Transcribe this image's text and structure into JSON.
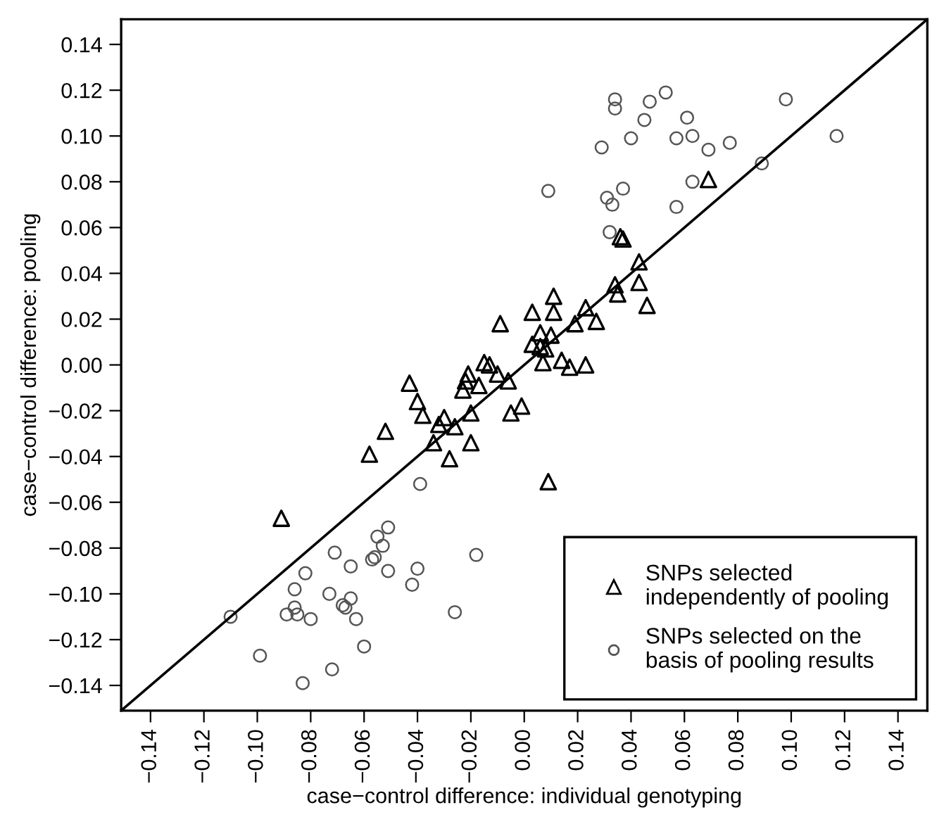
{
  "chart_data": {
    "type": "scatter",
    "xlabel": "case−control difference: individual genotyping",
    "ylabel": "case−control difference: pooling",
    "xlim": [
      -0.151,
      0.151
    ],
    "ylim": [
      -0.151,
      0.151
    ],
    "xticks": [
      {
        "value": -0.14,
        "label": "−0.14"
      },
      {
        "value": -0.12,
        "label": "−0.12"
      },
      {
        "value": -0.1,
        "label": "−0.10"
      },
      {
        "value": -0.08,
        "label": "−0.08"
      },
      {
        "value": -0.06,
        "label": "−0.06"
      },
      {
        "value": -0.04,
        "label": "−0.04"
      },
      {
        "value": -0.02,
        "label": "−0.02"
      },
      {
        "value": 0,
        "label": "0.00"
      },
      {
        "value": 0.02,
        "label": "0.02"
      },
      {
        "value": 0.04,
        "label": "0.04"
      },
      {
        "value": 0.06,
        "label": "0.06"
      },
      {
        "value": 0.08,
        "label": "0.08"
      },
      {
        "value": 0.1,
        "label": "0.10"
      },
      {
        "value": 0.12,
        "label": "0.12"
      },
      {
        "value": 0.14,
        "label": "0.14"
      }
    ],
    "yticks": [
      {
        "value": -0.14,
        "label": "−0.14"
      },
      {
        "value": -0.12,
        "label": "−0.12"
      },
      {
        "value": -0.1,
        "label": "−0.10"
      },
      {
        "value": -0.08,
        "label": "−0.08"
      },
      {
        "value": -0.06,
        "label": "−0.06"
      },
      {
        "value": -0.04,
        "label": "−0.04"
      },
      {
        "value": -0.02,
        "label": "−0.02"
      },
      {
        "value": 0,
        "label": "0.00"
      },
      {
        "value": 0.02,
        "label": "0.02"
      },
      {
        "value": 0.04,
        "label": "0.04"
      },
      {
        "value": 0.06,
        "label": "0.06"
      },
      {
        "value": 0.08,
        "label": "0.08"
      },
      {
        "value": 0.1,
        "label": "0.10"
      },
      {
        "value": 0.12,
        "label": "0.12"
      },
      {
        "value": 0.14,
        "label": "0.14"
      }
    ],
    "grid": false,
    "legend": "bottom right",
    "series": [
      {
        "type": "line",
        "color": "#000000",
        "line_style": "solid",
        "marker": "none",
        "x": [
          -0.151,
          0.151
        ],
        "values": [
          -0.151,
          0.151
        ]
      },
      {
        "name": "SNPs selected\nindependently of pooling",
        "color": "#000000",
        "marker": "triangle",
        "x": [
          0.069,
          0.036,
          0.037,
          0.043,
          0.034,
          0.043,
          0.035,
          0.046,
          0.011,
          0.003,
          0.011,
          0.023,
          0.027,
          0.019,
          -0.009,
          0.006,
          0.01,
          0.003,
          0.006,
          0.008,
          0.007,
          0.014,
          0.017,
          0.023,
          -0.015,
          -0.013,
          -0.01,
          -0.021,
          -0.022,
          -0.017,
          -0.023,
          -0.006,
          -0.005,
          -0.001,
          -0.02,
          -0.03,
          -0.043,
          -0.04,
          -0.038,
          -0.032,
          -0.026,
          -0.052,
          -0.058,
          -0.034,
          -0.028,
          -0.02,
          -0.091,
          0.009
        ],
        "values": [
          0.081,
          0.056,
          0.055,
          0.045,
          0.035,
          0.036,
          0.031,
          0.026,
          0.03,
          0.023,
          0.023,
          0.025,
          0.019,
          0.018,
          0.018,
          0.014,
          0.013,
          0.009,
          0.008,
          0.007,
          0.001,
          0.002,
          -0.001,
          0.0,
          0.001,
          0.0,
          -0.004,
          -0.004,
          -0.007,
          -0.009,
          -0.011,
          -0.007,
          -0.021,
          -0.018,
          -0.021,
          -0.023,
          -0.008,
          -0.016,
          -0.022,
          -0.026,
          -0.027,
          -0.029,
          -0.039,
          -0.034,
          -0.041,
          -0.034,
          -0.067,
          -0.051
        ]
      },
      {
        "name": "SNPs selected on the\nbasis of pooling results",
        "color": "#555555",
        "marker": "circle",
        "x": [
          0.009,
          0.034,
          0.034,
          0.047,
          0.053,
          0.045,
          0.061,
          0.04,
          0.029,
          0.057,
          0.063,
          0.069,
          0.077,
          0.098,
          0.117,
          0.089,
          0.063,
          0.037,
          0.031,
          0.033,
          0.057,
          0.032,
          -0.039,
          -0.051,
          -0.055,
          -0.053,
          -0.056,
          -0.057,
          -0.071,
          -0.082,
          -0.065,
          -0.051,
          -0.04,
          -0.042,
          -0.018,
          -0.086,
          -0.073,
          -0.065,
          -0.068,
          -0.067,
          -0.086,
          -0.085,
          -0.089,
          -0.08,
          -0.063,
          -0.11,
          -0.026,
          -0.06,
          -0.099,
          -0.072,
          -0.083
        ],
        "values": [
          0.076,
          0.116,
          0.112,
          0.115,
          0.119,
          0.107,
          0.108,
          0.099,
          0.095,
          0.099,
          0.1,
          0.094,
          0.097,
          0.116,
          0.1,
          0.088,
          0.08,
          0.077,
          0.073,
          0.07,
          0.069,
          0.058,
          -0.052,
          -0.071,
          -0.075,
          -0.079,
          -0.084,
          -0.085,
          -0.082,
          -0.091,
          -0.088,
          -0.09,
          -0.089,
          -0.096,
          -0.083,
          -0.098,
          -0.1,
          -0.102,
          -0.105,
          -0.106,
          -0.106,
          -0.109,
          -0.109,
          -0.111,
          -0.111,
          -0.11,
          -0.108,
          -0.123,
          -0.127,
          -0.133,
          -0.139
        ]
      }
    ]
  }
}
